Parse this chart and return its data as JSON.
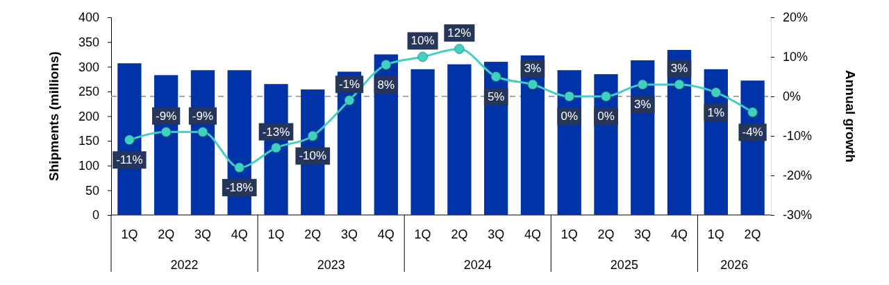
{
  "chart_data": {
    "type": "bar",
    "ylabel": "Shipments (millions)",
    "y2label": "Annual growth",
    "categories": [
      "1Q",
      "2Q",
      "3Q",
      "4Q",
      "1Q",
      "2Q",
      "3Q",
      "4Q",
      "1Q",
      "2Q",
      "3Q",
      "4Q",
      "1Q",
      "2Q",
      "3Q",
      "4Q",
      "1Q",
      "2Q"
    ],
    "annotations": [
      "2022",
      "2023",
      "2024",
      "2025",
      "2026"
    ],
    "series": [
      {
        "color": "#0033a8",
        "values": [
          307,
          283,
          293,
          293,
          265,
          254,
          290,
          325,
          295,
          305,
          310,
          323,
          293,
          285,
          313,
          334,
          295,
          272
        ]
      },
      {
        "type": "line",
        "axis": "y2",
        "color": "#40d0c0",
        "marker": "circle",
        "values": [
          -11,
          -9,
          -9,
          -18,
          -13,
          -10,
          -1,
          8,
          10,
          12,
          5,
          3,
          0,
          0,
          3,
          3,
          1,
          -4
        ],
        "value_labels": [
          "-11%",
          "-9%",
          "-9%",
          "-18%",
          "-13%",
          "-10%",
          "-1%",
          "8%",
          "10%",
          "12%",
          "5%",
          "3%",
          "0%",
          "0%",
          "3%",
          "3%",
          "1%",
          "-4%"
        ]
      }
    ],
    "ylim": [
      0,
      400
    ],
    "yticks": [
      0,
      50,
      100,
      150,
      200,
      250,
      300,
      350,
      400
    ],
    "y2lim": [
      -30,
      20
    ],
    "y2ticks": [
      {
        "value": -30,
        "label": "-30%"
      },
      {
        "value": -20,
        "label": "-20%"
      },
      {
        "value": -10,
        "label": "-10%"
      },
      {
        "value": 0,
        "label": "0%"
      },
      {
        "value": 10,
        "label": "10%"
      },
      {
        "value": 20,
        "label": "20%"
      }
    ],
    "ref_lines": [
      {
        "axis": "y2",
        "value": 0,
        "color": "#a6a6a6",
        "line_style": "dashed"
      }
    ],
    "grid": false
  }
}
